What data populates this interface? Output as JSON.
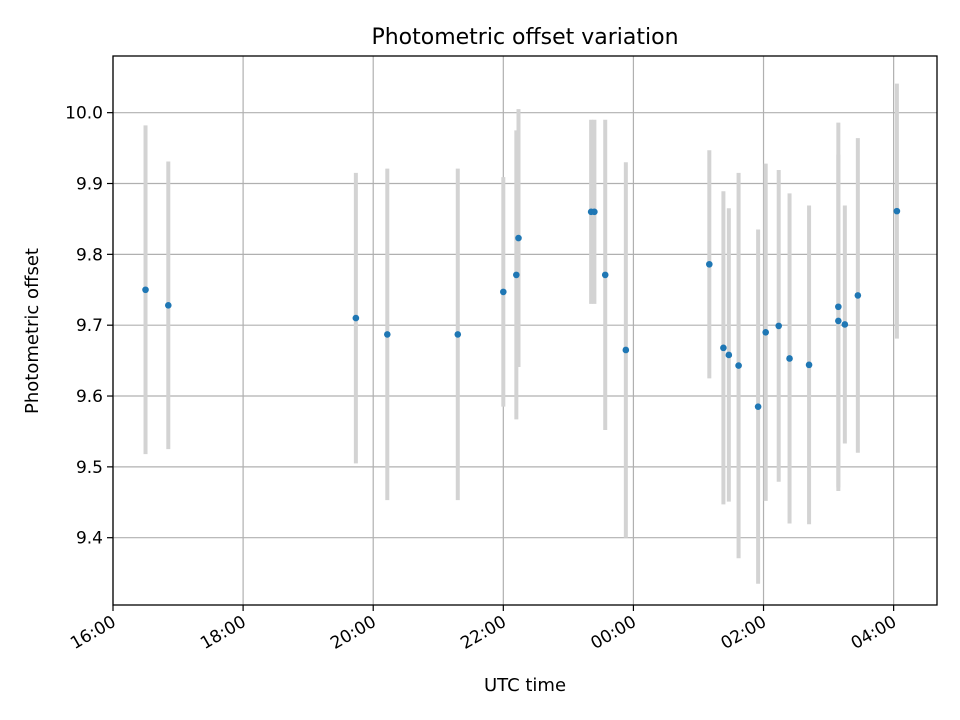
{
  "chart_data": {
    "type": "scatter",
    "title": "Photometric offset variation",
    "xlabel": "UTC time",
    "ylabel": "Photometric offset",
    "x_axis": {
      "kind": "time",
      "min": "16:00",
      "max": "04:40",
      "ticks": [
        "16:00",
        "18:00",
        "20:00",
        "22:00",
        "00:00",
        "02:00",
        "04:00"
      ]
    },
    "ylim": [
      9.305,
      10.08
    ],
    "y_ticks": [
      "9.4",
      "9.5",
      "9.6",
      "9.7",
      "9.8",
      "9.9",
      "10.0"
    ],
    "grid": true,
    "colors": {
      "marker": "#1f77b4",
      "errorbar": "#d3d3d3"
    },
    "points": [
      {
        "x": "16:30",
        "y": 9.75,
        "err": 0.232
      },
      {
        "x": "16:51",
        "y": 9.728,
        "err": 0.203
      },
      {
        "x": "19:44",
        "y": 9.71,
        "err": 0.205
      },
      {
        "x": "20:13",
        "y": 9.687,
        "err": 0.234
      },
      {
        "x": "21:18",
        "y": 9.687,
        "err": 0.234
      },
      {
        "x": "22:00",
        "y": 9.747,
        "err": 0.162
      },
      {
        "x": "22:12",
        "y": 9.771,
        "err": 0.204
      },
      {
        "x": "22:14",
        "y": 9.823,
        "err": 0.182
      },
      {
        "x": "23:21",
        "y": 9.86,
        "err": 0.13
      },
      {
        "x": "23:24",
        "y": 9.86,
        "err": 0.13
      },
      {
        "x": "23:34",
        "y": 9.771,
        "err": 0.219
      },
      {
        "x": "23:53",
        "y": 9.665,
        "err": 0.265
      },
      {
        "x": "01:10",
        "y": 9.786,
        "err": 0.161
      },
      {
        "x": "01:23",
        "y": 9.668,
        "err": 0.221
      },
      {
        "x": "01:28",
        "y": 9.658,
        "err": 0.207
      },
      {
        "x": "01:37",
        "y": 9.643,
        "err": 0.272
      },
      {
        "x": "01:55",
        "y": 9.585,
        "err": 0.25
      },
      {
        "x": "02:02",
        "y": 9.69,
        "err": 0.238
      },
      {
        "x": "02:14",
        "y": 9.699,
        "err": 0.22
      },
      {
        "x": "02:24",
        "y": 9.653,
        "err": 0.233
      },
      {
        "x": "02:42",
        "y": 9.644,
        "err": 0.225
      },
      {
        "x": "03:09",
        "y": 9.726,
        "err": 0.26
      },
      {
        "x": "03:09",
        "y": 9.706,
        "err": 0.235
      },
      {
        "x": "03:15",
        "y": 9.701,
        "err": 0.168
      },
      {
        "x": "03:27",
        "y": 9.742,
        "err": 0.222
      },
      {
        "x": "04:03",
        "y": 9.861,
        "err": 0.18
      }
    ]
  }
}
